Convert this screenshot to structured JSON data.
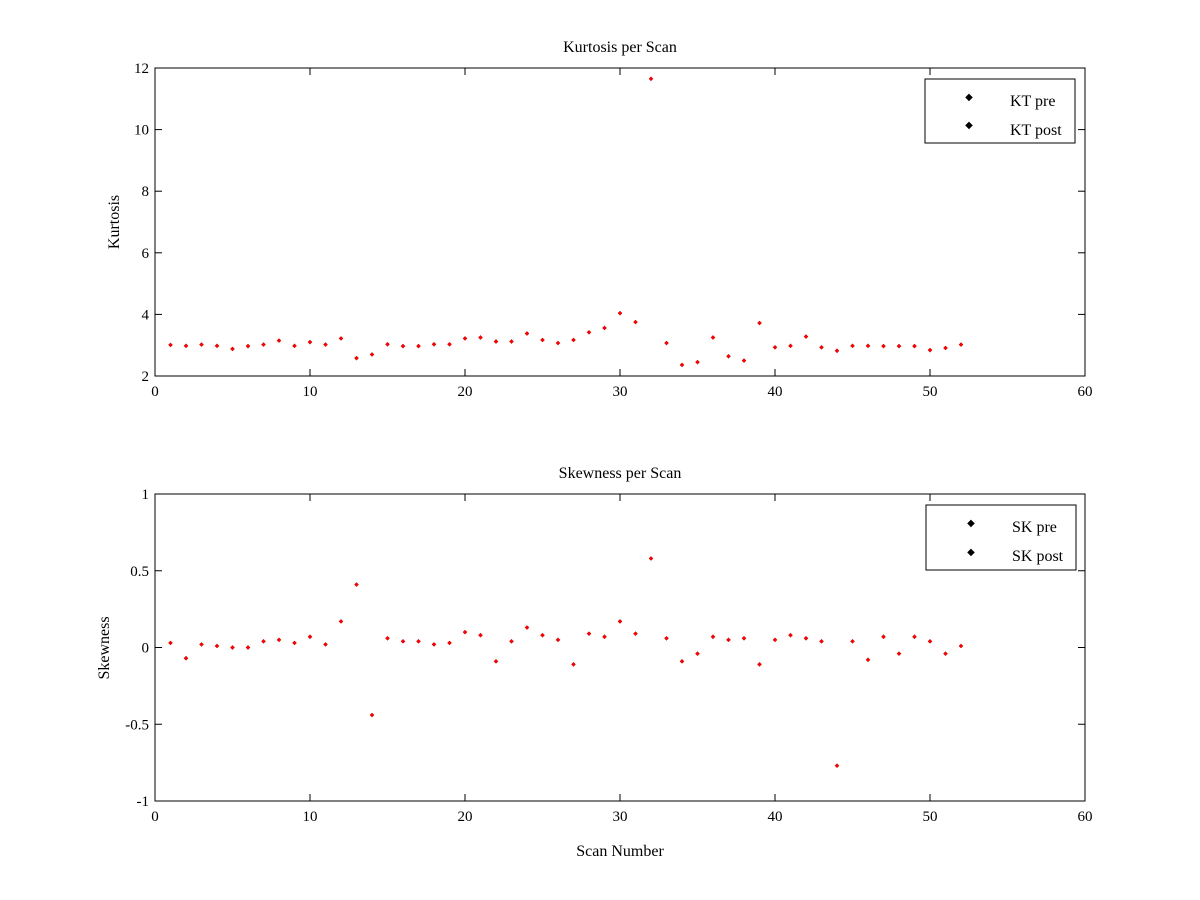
{
  "chart_data": [
    {
      "type": "scatter",
      "title": "Kurtosis per Scan",
      "xlabel": "",
      "ylabel": "Kurtosis",
      "xlim": [
        0,
        60
      ],
      "ylim": [
        2,
        12
      ],
      "xticks": [
        0,
        10,
        20,
        30,
        40,
        50,
        60
      ],
      "yticks": [
        2,
        4,
        6,
        8,
        10,
        12
      ],
      "legend_position": "top-right",
      "series": [
        {
          "name": "KT pre",
          "color": "#000000",
          "x": [
            1,
            2,
            3,
            4,
            5,
            6,
            7,
            8,
            9,
            10,
            11,
            12,
            13,
            14,
            15,
            16,
            17,
            18,
            19,
            20,
            21,
            22,
            23,
            24,
            25,
            26,
            27,
            28,
            29,
            30,
            31,
            32,
            33,
            34,
            35,
            36,
            37,
            38,
            39,
            40,
            41,
            42,
            43,
            44,
            45,
            46,
            47,
            48,
            49,
            50,
            51,
            52
          ],
          "y": [
            3.01,
            2.98,
            3.02,
            2.98,
            2.88,
            2.97,
            3.02,
            3.15,
            2.98,
            3.1,
            3.02,
            3.22,
            2.58,
            2.7,
            3.03,
            2.97,
            2.97,
            3.03,
            3.03,
            3.22,
            3.25,
            3.12,
            3.12,
            3.38,
            3.17,
            3.07,
            3.17,
            3.42,
            3.56,
            4.04,
            3.75,
            11.65,
            3.07,
            2.36,
            2.45,
            3.25,
            2.64,
            2.5,
            3.72,
            2.93,
            2.98,
            3.28,
            2.93,
            2.82,
            2.98,
            2.98,
            2.97,
            2.97,
            2.97,
            2.84,
            2.91,
            3.02
          ]
        },
        {
          "name": "KT post",
          "color": "#ff0000",
          "x": [
            1,
            2,
            3,
            4,
            5,
            6,
            7,
            8,
            9,
            10,
            11,
            12,
            13,
            14,
            15,
            16,
            17,
            18,
            19,
            20,
            21,
            22,
            23,
            24,
            25,
            26,
            27,
            28,
            29,
            30,
            31,
            32,
            33,
            34,
            35,
            36,
            37,
            38,
            39,
            40,
            41,
            42,
            43,
            44,
            45,
            46,
            47,
            48,
            49,
            50,
            51,
            52
          ],
          "y": [
            3.01,
            2.98,
            3.02,
            2.98,
            2.88,
            2.97,
            3.02,
            3.15,
            2.98,
            3.1,
            3.02,
            3.22,
            2.58,
            2.7,
            3.03,
            2.97,
            2.97,
            3.03,
            3.03,
            3.22,
            3.25,
            3.12,
            3.12,
            3.38,
            3.17,
            3.07,
            3.17,
            3.42,
            3.56,
            4.04,
            3.75,
            11.65,
            3.07,
            2.36,
            2.45,
            3.25,
            2.64,
            2.5,
            3.72,
            2.93,
            2.98,
            3.28,
            2.93,
            2.82,
            2.98,
            2.98,
            2.97,
            2.97,
            2.97,
            2.84,
            2.91,
            3.02
          ]
        }
      ]
    },
    {
      "type": "scatter",
      "title": "Skewness per Scan",
      "xlabel": "Scan Number",
      "ylabel": "Skewness",
      "xlim": [
        0,
        60
      ],
      "ylim": [
        -1,
        1
      ],
      "xticks": [
        0,
        10,
        20,
        30,
        40,
        50,
        60
      ],
      "yticks": [
        -1,
        -0.5,
        0,
        0.5,
        1
      ],
      "legend_position": "top-right",
      "series": [
        {
          "name": "SK pre",
          "color": "#000000",
          "x": [
            1,
            2,
            3,
            4,
            5,
            6,
            7,
            8,
            9,
            10,
            11,
            12,
            13,
            14,
            15,
            16,
            17,
            18,
            19,
            20,
            21,
            22,
            23,
            24,
            25,
            26,
            27,
            28,
            29,
            30,
            31,
            32,
            33,
            34,
            35,
            36,
            37,
            38,
            39,
            40,
            41,
            42,
            43,
            44,
            45,
            46,
            47,
            48,
            49,
            50,
            51,
            52
          ],
          "y": [
            0.03,
            -0.07,
            0.02,
            0.01,
            0,
            0,
            0.04,
            0.05,
            0.03,
            0.07,
            0.02,
            0.17,
            0.41,
            -0.44,
            0.06,
            0.04,
            0.04,
            0.02,
            0.03,
            0.1,
            0.08,
            -0.09,
            0.04,
            0.13,
            0.08,
            0.05,
            -0.11,
            0.09,
            0.07,
            0.17,
            0.09,
            0.58,
            0.06,
            -0.09,
            -0.04,
            0.07,
            0.05,
            0.06,
            -0.11,
            0.05,
            0.08,
            0.06,
            0.04,
            -0.77,
            0.04,
            -0.08,
            0.07,
            -0.04,
            0.07,
            0.04,
            -0.04,
            0.01
          ]
        },
        {
          "name": "SK post",
          "color": "#ff0000",
          "x": [
            1,
            2,
            3,
            4,
            5,
            6,
            7,
            8,
            9,
            10,
            11,
            12,
            13,
            14,
            15,
            16,
            17,
            18,
            19,
            20,
            21,
            22,
            23,
            24,
            25,
            26,
            27,
            28,
            29,
            30,
            31,
            32,
            33,
            34,
            35,
            36,
            37,
            38,
            39,
            40,
            41,
            42,
            43,
            44,
            45,
            46,
            47,
            48,
            49,
            50,
            51,
            52
          ],
          "y": [
            0.03,
            -0.07,
            0.02,
            0.01,
            0,
            0,
            0.04,
            0.05,
            0.03,
            0.07,
            0.02,
            0.17,
            0.41,
            -0.44,
            0.06,
            0.04,
            0.04,
            0.02,
            0.03,
            0.1,
            0.08,
            -0.09,
            0.04,
            0.13,
            0.08,
            0.05,
            -0.11,
            0.09,
            0.07,
            0.17,
            0.09,
            0.58,
            0.06,
            -0.09,
            -0.04,
            0.07,
            0.05,
            0.06,
            -0.11,
            0.05,
            0.08,
            0.06,
            0.04,
            -0.77,
            0.04,
            -0.08,
            0.07,
            -0.04,
            0.07,
            0.04,
            -0.04,
            0.01
          ]
        }
      ]
    }
  ]
}
